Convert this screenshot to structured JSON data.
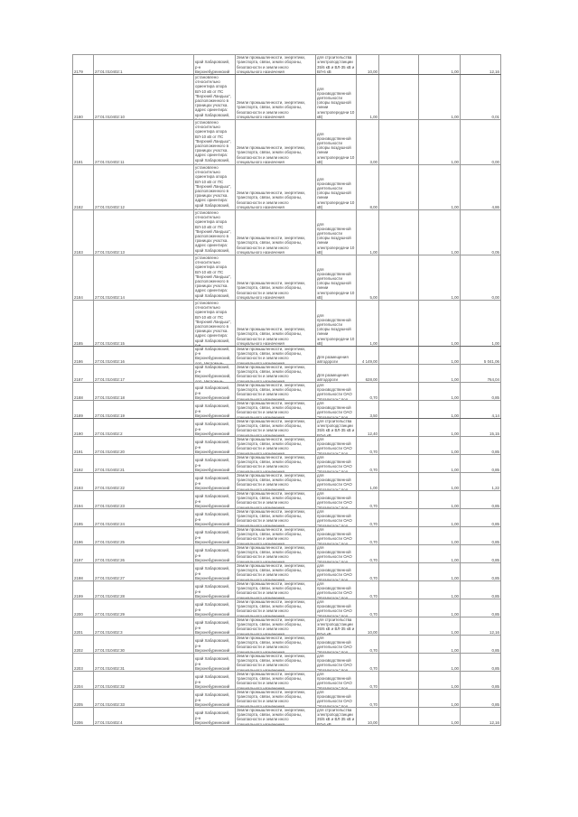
{
  "texts": {
    "addr_short": "край Хабаровский, р-н Верхнебуреинский",
    "addr_long": "установлено относительно ориентира опора ВЛ-10 кВ от ПС \"Верхний Ландыш\", расположенного в границах участка. адрес ориентира: край Хабаровский, р-н Верхнебуреинский",
    "addr_road": "край Хабаровский, р-н Верхнебуреинский, дор. Чегдомын-Верхний Ландыш",
    "category": "Земли промышленности, энергетики, транспорта, связи, земли обороны, безопасности и земли иного специального назначения",
    "p_vl10": "для производственной деятельности (опоры воздушной линии электропередачи 10 кВ)",
    "p_road": "Для размещения автодороги",
    "p_urgal": "для производственной деятельности ОАО \"Ургалуголь\" под ВЛ-6 кВ",
    "p_build": "для строительства электроподстанции 35/6 кВ и ВЛ-35 кВ и ВЛ-6 кВ"
  },
  "rows": [
    {
      "no": "2179",
      "cad": "27:01:010402:1",
      "addr": "addr_short",
      "purpose": "p_build",
      "area": "10,00",
      "coef": "1,00",
      "value": "12,16",
      "h": 22
    },
    {
      "no": "2180",
      "cad": "27:01:010402:10",
      "addr": "addr_long",
      "purpose": "p_vl10",
      "area": "1,00",
      "coef": "1,00",
      "value": "0,01",
      "h": 50
    },
    {
      "no": "2181",
      "cad": "27:01:010402:11",
      "addr": "addr_long",
      "purpose": "p_vl10",
      "area": "3,00",
      "coef": "1,00",
      "value": "0,00",
      "h": 50
    },
    {
      "no": "2182",
      "cad": "27:01:010402:12",
      "addr": "addr_long",
      "purpose": "p_vl10",
      "area": "8,00",
      "coef": "1,00",
      "value": "4,86",
      "h": 50
    },
    {
      "no": "2183",
      "cad": "27:01:010402:13",
      "addr": "addr_long",
      "purpose": "p_vl10",
      "area": "1,00",
      "coef": "1,00",
      "value": "0,05",
      "h": 50
    },
    {
      "no": "2184",
      "cad": "27:01:010402:14",
      "addr": "addr_long",
      "purpose": "p_vl10",
      "area": "5,00",
      "coef": "1,00",
      "value": "0,00",
      "h": 50
    },
    {
      "no": "2185",
      "cad": "27:01:010402:15",
      "addr": "addr_long",
      "purpose": "p_vl10",
      "area": "1,00",
      "coef": "1,00",
      "value": "1,00",
      "h": 51
    },
    {
      "no": "2186",
      "cad": "27:01:010402:16",
      "addr": "addr_road",
      "purpose": "p_road",
      "area": "4 149,00",
      "coef": "1,00",
      "value": "5 041,06",
      "h": 20
    },
    {
      "no": "2187",
      "cad": "27:01:010402:17",
      "addr": "addr_road",
      "purpose": "p_road",
      "area": "628,00",
      "coef": "1,00",
      "value": "764,04",
      "h": 20
    },
    {
      "no": "2188",
      "cad": "27:01:010402:18",
      "addr": "addr_short",
      "purpose": "p_urgal",
      "area": "0,70",
      "coef": "1,00",
      "value": "0,85",
      "h": 20
    },
    {
      "no": "2189",
      "cad": "27:01:010402:19",
      "addr": "addr_short",
      "purpose": "p_urgal",
      "area": "3,50",
      "coef": "1,00",
      "value": "4,14",
      "h": 20
    },
    {
      "no": "2190",
      "cad": "27:01:010402:2",
      "addr": "addr_short",
      "purpose": "p_build",
      "area": "12,40",
      "coef": "1,00",
      "value": "15,15",
      "h": 20
    },
    {
      "no": "2191",
      "cad": "27:01:010402:20",
      "addr": "addr_short",
      "purpose": "p_urgal",
      "area": "0,70",
      "coef": "1,00",
      "value": "0,85",
      "h": 20
    },
    {
      "no": "2192",
      "cad": "27:01:010402:21",
      "addr": "addr_short",
      "purpose": "p_urgal",
      "area": "0,70",
      "coef": "1,00",
      "value": "0,85",
      "h": 20
    },
    {
      "no": "2193",
      "cad": "27:01:010402:22",
      "addr": "addr_short",
      "purpose": "p_urgal",
      "area": "1,00",
      "coef": "1,00",
      "value": "1,22",
      "h": 20
    },
    {
      "no": "2194",
      "cad": "27:01:010402:23",
      "addr": "addr_short",
      "purpose": "p_urgal",
      "area": "0,70",
      "coef": "1,00",
      "value": "0,85",
      "h": 20
    },
    {
      "no": "2195",
      "cad": "27:01:010402:24",
      "addr": "addr_short",
      "purpose": "p_urgal",
      "area": "0,70",
      "coef": "1,00",
      "value": "0,85",
      "h": 20
    },
    {
      "no": "2196",
      "cad": "27:01:010402:25",
      "addr": "addr_short",
      "purpose": "p_urgal",
      "area": "0,70",
      "coef": "1,00",
      "value": "0,85",
      "h": 20
    },
    {
      "no": "2197",
      "cad": "27:01:010402:26",
      "addr": "addr_short",
      "purpose": "p_urgal",
      "area": "0,70",
      "coef": "1,00",
      "value": "0,85",
      "h": 20
    },
    {
      "no": "2198",
      "cad": "27:01:010402:27",
      "addr": "addr_short",
      "purpose": "p_urgal",
      "area": "0,70",
      "coef": "1,00",
      "value": "0,85",
      "h": 20
    },
    {
      "no": "2199",
      "cad": "27:01:010402:28",
      "addr": "addr_short",
      "purpose": "p_urgal",
      "area": "0,70",
      "coef": "1,00",
      "value": "0,85",
      "h": 20
    },
    {
      "no": "2200",
      "cad": "27:01:010402:29",
      "addr": "addr_short",
      "purpose": "p_urgal",
      "area": "0,70",
      "coef": "1,00",
      "value": "0,85",
      "h": 20
    },
    {
      "no": "2201",
      "cad": "27:01:010402:3",
      "addr": "addr_short",
      "purpose": "p_build",
      "area": "10,00",
      "coef": "1,00",
      "value": "12,16",
      "h": 20
    },
    {
      "no": "2202",
      "cad": "27:01:010402:30",
      "addr": "addr_short",
      "purpose": "p_urgal",
      "area": "0,70",
      "coef": "1,00",
      "value": "0,85",
      "h": 20
    },
    {
      "no": "2203",
      "cad": "27:01:010402:31",
      "addr": "addr_short",
      "purpose": "p_urgal",
      "area": "0,70",
      "coef": "1,00",
      "value": "0,85",
      "h": 20
    },
    {
      "no": "2204",
      "cad": "27:01:010402:32",
      "addr": "addr_short",
      "purpose": "p_urgal",
      "area": "0,70",
      "coef": "1,00",
      "value": "0,85",
      "h": 20
    },
    {
      "no": "2205",
      "cad": "27:01:010402:33",
      "addr": "addr_short",
      "purpose": "p_urgal",
      "area": "0,70",
      "coef": "1,00",
      "value": "0,85",
      "h": 20
    },
    {
      "no": "2206",
      "cad": "27:01:010402:4",
      "addr": "addr_short",
      "purpose": "p_build",
      "area": "10,00",
      "coef": "1,00",
      "value": "12,16",
      "h": 20
    }
  ]
}
